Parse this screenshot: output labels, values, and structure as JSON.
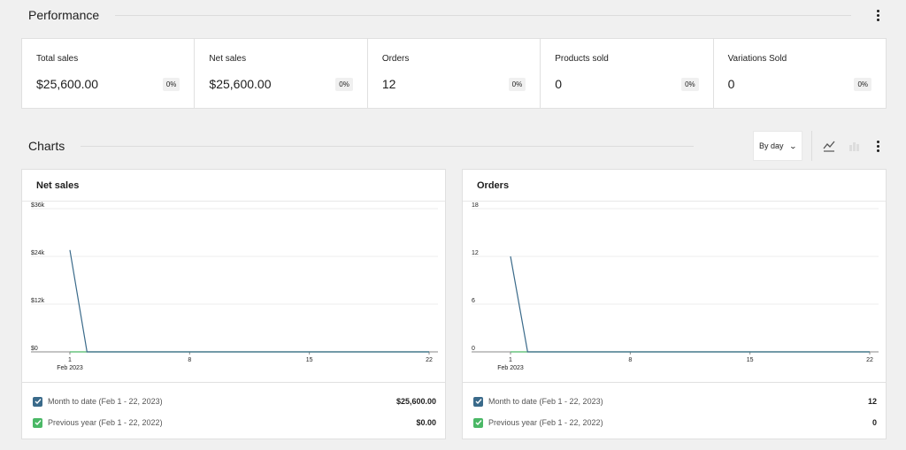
{
  "performance": {
    "title": "Performance",
    "metrics": [
      {
        "label": "Total sales",
        "value": "$25,600.00",
        "delta": "0%"
      },
      {
        "label": "Net sales",
        "value": "$25,600.00",
        "delta": "0%"
      },
      {
        "label": "Orders",
        "value": "12",
        "delta": "0%"
      },
      {
        "label": "Products sold",
        "value": "0",
        "delta": "0%"
      },
      {
        "label": "Variations Sold",
        "value": "0",
        "delta": "0%"
      }
    ]
  },
  "charts": {
    "title": "Charts",
    "interval": "By day",
    "icons": [
      "line-chart-icon",
      "bar-chart-icon",
      "more-vertical-icon"
    ]
  },
  "colors": {
    "primary_series": "#3a6a8a",
    "secondary_series": "#4ab866",
    "card_border": "#e0e0e0"
  },
  "chart_data": [
    {
      "type": "line",
      "title": "Net sales",
      "x_ticks": [
        "1",
        "8",
        "15",
        "22"
      ],
      "x_sublabel": "Feb 2023",
      "y_ticks": [
        "$0",
        "$12k",
        "$24k",
        "$36k"
      ],
      "ylim": [
        0,
        36000
      ],
      "xlim": [
        1,
        22
      ],
      "series": [
        {
          "name": "Month to date (Feb 1 - 22, 2023)",
          "x": [
            1,
            2,
            3,
            4,
            5,
            6,
            7,
            8,
            9,
            10,
            11,
            12,
            13,
            14,
            15,
            16,
            17,
            18,
            19,
            20,
            21,
            22
          ],
          "values": [
            25600,
            0,
            0,
            0,
            0,
            0,
            0,
            0,
            0,
            0,
            0,
            0,
            0,
            0,
            0,
            0,
            0,
            0,
            0,
            0,
            0,
            0
          ]
        },
        {
          "name": "Previous year (Feb 1 - 22, 2022)",
          "x": [
            1,
            2,
            3,
            4,
            5,
            6,
            7,
            8,
            9,
            10,
            11,
            12,
            13,
            14,
            15,
            16,
            17,
            18,
            19,
            20,
            21,
            22
          ],
          "values": [
            0,
            0,
            0,
            0,
            0,
            0,
            0,
            0,
            0,
            0,
            0,
            0,
            0,
            0,
            0,
            0,
            0,
            0,
            0,
            0,
            0,
            0
          ]
        }
      ],
      "legend": [
        {
          "label": "Month to date (Feb 1 - 22, 2023)",
          "value": "$25,600.00"
        },
        {
          "label": "Previous year (Feb 1 - 22, 2022)",
          "value": "$0.00"
        }
      ]
    },
    {
      "type": "line",
      "title": "Orders",
      "x_ticks": [
        "1",
        "8",
        "15",
        "22"
      ],
      "x_sublabel": "Feb 2023",
      "y_ticks": [
        "0",
        "6",
        "12",
        "18"
      ],
      "ylim": [
        0,
        18
      ],
      "xlim": [
        1,
        22
      ],
      "series": [
        {
          "name": "Month to date (Feb 1 - 22, 2023)",
          "x": [
            1,
            2,
            3,
            4,
            5,
            6,
            7,
            8,
            9,
            10,
            11,
            12,
            13,
            14,
            15,
            16,
            17,
            18,
            19,
            20,
            21,
            22
          ],
          "values": [
            12,
            0,
            0,
            0,
            0,
            0,
            0,
            0,
            0,
            0,
            0,
            0,
            0,
            0,
            0,
            0,
            0,
            0,
            0,
            0,
            0,
            0
          ]
        },
        {
          "name": "Previous year (Feb 1 - 22, 2022)",
          "x": [
            1,
            2,
            3,
            4,
            5,
            6,
            7,
            8,
            9,
            10,
            11,
            12,
            13,
            14,
            15,
            16,
            17,
            18,
            19,
            20,
            21,
            22
          ],
          "values": [
            0,
            0,
            0,
            0,
            0,
            0,
            0,
            0,
            0,
            0,
            0,
            0,
            0,
            0,
            0,
            0,
            0,
            0,
            0,
            0,
            0,
            0
          ]
        }
      ],
      "legend": [
        {
          "label": "Month to date (Feb 1 - 22, 2023)",
          "value": "12"
        },
        {
          "label": "Previous year (Feb 1 - 22, 2022)",
          "value": "0"
        }
      ]
    }
  ]
}
